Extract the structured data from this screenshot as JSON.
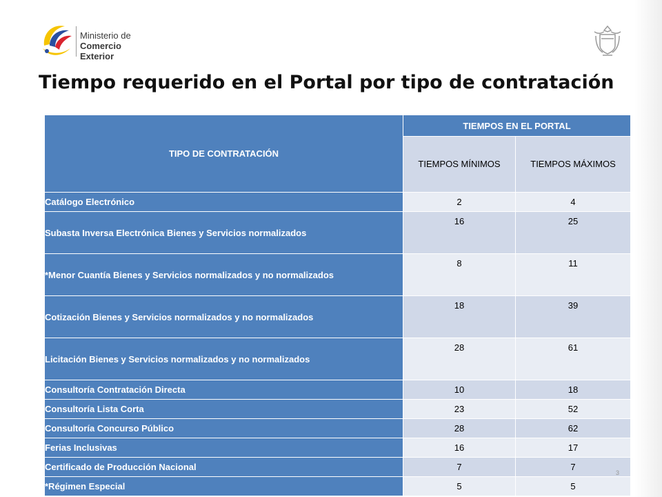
{
  "logo": {
    "line1": "Ministerio de",
    "line2": "Comercio Exterior",
    "emblem_icon": "ministry-logo-icon",
    "colors": [
      "#f6c400",
      "#2a4fa0",
      "#d9242f"
    ]
  },
  "seal": {
    "icon": "coat-of-arms-icon"
  },
  "title": "Tiempo requerido en el Portal por tipo de contratación",
  "table": {
    "header": {
      "type": "TIPO DE CONTRATACIÓN",
      "portal": "TIEMPOS EN EL PORTAL",
      "min": "TIEMPOS MÍNIMOS",
      "max": "TIEMPOS MÁXIMOS"
    },
    "rows": [
      {
        "name": "Catálogo Electrónico",
        "min": "2",
        "max": "4"
      },
      {
        "name": "Subasta Inversa Electrónica Bienes y Servicios normalizados",
        "min": "16",
        "max": "25"
      },
      {
        "name": "*Menor Cuantía Bienes y Servicios normalizados y no normalizados",
        "min": "8",
        "max": "11"
      },
      {
        "name": "Cotización Bienes y Servicios normalizados y no normalizados",
        "min": "18",
        "max": "39"
      },
      {
        "name": "Licitación Bienes y Servicios normalizados y no normalizados",
        "min": "28",
        "max": "61"
      },
      {
        "name": "Consultoría Contratación Directa",
        "min": "10",
        "max": "18"
      },
      {
        "name": "Consultoría Lista Corta",
        "min": "23",
        "max": "52"
      },
      {
        "name": "Consultoría Concurso Público",
        "min": "28",
        "max": "62"
      },
      {
        "name": "Ferias Inclusivas",
        "min": "16",
        "max": "17"
      },
      {
        "name": "Certificado de Producción Nacional",
        "min": "7",
        "max": "7"
      },
      {
        "name": "*Régimen Especial",
        "min": "5",
        "max": "5"
      }
    ]
  },
  "page_number": "3",
  "colors": {
    "header_blue": "#4f81bd",
    "row_light": "#e9edf4",
    "row_dark": "#d0d8e8"
  }
}
